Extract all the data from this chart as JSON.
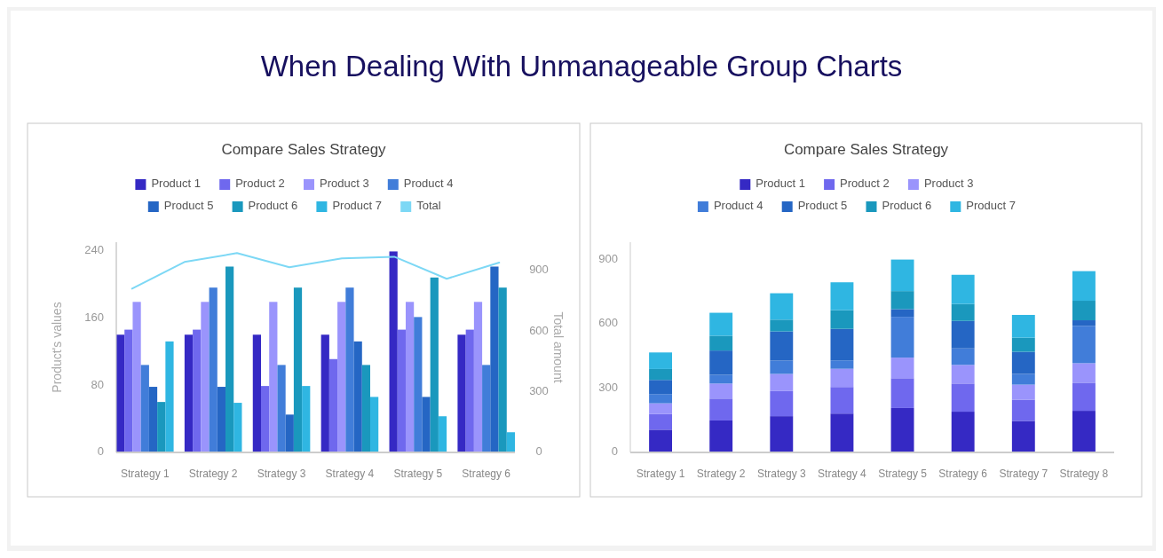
{
  "chart_data": [
    {
      "type": "bar",
      "title": "Compare Sales Strategy",
      "annotations": [
        "When Dealing With Unmanageable Group Charts"
      ],
      "ylabel": "Product's values",
      "legend": "top",
      "categories": [
        "Strategy 1",
        "Strategy 2",
        "Strategy 3",
        "Strategy 4",
        "Strategy 5",
        "Strategy 6"
      ],
      "ylim": [
        0,
        250
      ],
      "yticks": [
        0,
        80,
        160,
        240
      ],
      "series": [
        {
          "name": "Product 1",
          "color": "#3529c4",
          "values": [
            140,
            140,
            140,
            140,
            239,
            140
          ]
        },
        {
          "name": "Product 2",
          "color": "#6f68ee",
          "values": [
            146,
            146,
            79,
            111,
            146,
            146
          ]
        },
        {
          "name": "Product 3",
          "color": "#9a94fc",
          "values": [
            179,
            179,
            179,
            179,
            179,
            179
          ]
        },
        {
          "name": "Product 4",
          "color": "#417dd9",
          "values": [
            104,
            196,
            104,
            196,
            161,
            104
          ]
        },
        {
          "name": "Product 5",
          "color": "#2566c4",
          "values": [
            78,
            78,
            45,
            132,
            66,
            221
          ]
        },
        {
          "name": "Product 6",
          "color": "#1a98bd",
          "values": [
            60,
            221,
            196,
            104,
            208,
            196
          ]
        },
        {
          "name": "Product 7",
          "color": "#2fb6e2",
          "values": [
            132,
            59,
            79,
            66,
            43,
            24
          ]
        }
      ]
    },
    {
      "type": "line",
      "ylabel": "Total amount",
      "legend": "top",
      "tick_labels": "y",
      "categories": [
        null,
        null,
        null,
        null,
        null,
        null,
        null,
        null
      ],
      "ylim": [
        0,
        1040
      ],
      "yticks": [
        0,
        300,
        600,
        900
      ],
      "series": [
        {
          "name": "Total",
          "color": "#7dd8f5",
          "values": [
            810,
            942,
            986,
            916,
            960,
            968,
            859,
            939
          ]
        }
      ]
    },
    {
      "type": "bar",
      "title": "Compare Sales Strategy",
      "legend": "top",
      "stacked": true,
      "categories": [
        "Strategy 1",
        "Strategy 2",
        "Strategy 3",
        "Strategy 4",
        "Strategy 5",
        "Strategy 6",
        "Strategy 7",
        "Strategy 8"
      ],
      "ylim": [
        0,
        980
      ],
      "yticks": [
        0,
        300,
        600,
        900
      ],
      "series": [
        {
          "name": "Product 1",
          "color": "#3529c4",
          "values": [
            106,
            149,
            169,
            181,
            207,
            190,
            147,
            194
          ]
        },
        {
          "name": "Product 2",
          "color": "#6f68ee",
          "values": [
            73,
            102,
            117,
            124,
            139,
            131,
            99,
            131
          ]
        },
        {
          "name": "Product 3",
          "color": "#9a94fc",
          "values": [
            50,
            70,
            80,
            85,
            96,
            87,
            70,
            91
          ]
        },
        {
          "name": "Product 4",
          "color": "#417dd9",
          "values": [
            43,
            41,
            62,
            39,
            190,
            77,
            50,
            174
          ]
        },
        {
          "name": "Product 5",
          "color": "#2566c4",
          "values": [
            66,
            113,
            136,
            147,
            36,
            128,
            103,
            26
          ]
        },
        {
          "name": "Product 6",
          "color": "#1a98bd",
          "values": [
            51,
            69,
            55,
            87,
            84,
            79,
            66,
            91
          ]
        },
        {
          "name": "Product 7",
          "color": "#2fb6e2",
          "values": [
            77,
            107,
            123,
            130,
            147,
            136,
            106,
            138
          ]
        }
      ]
    }
  ]
}
